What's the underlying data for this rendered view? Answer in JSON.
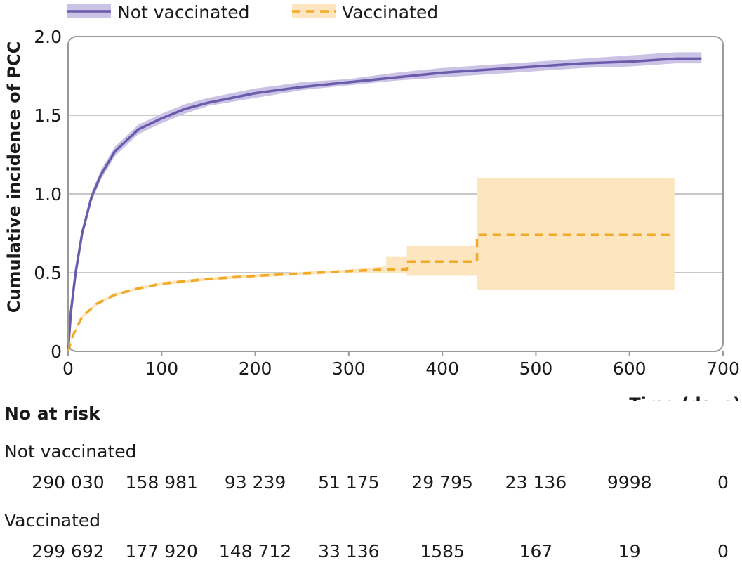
{
  "chart_data": {
    "type": "line",
    "title": "",
    "xlabel": "Time (days)",
    "ylabel": "Cumulative incidence of PCC",
    "xlim": [
      0,
      700
    ],
    "ylim": [
      0,
      2.0
    ],
    "x_ticks": [
      "0",
      "100",
      "200",
      "300",
      "400",
      "500",
      "600",
      "700"
    ],
    "y_ticks": [
      "0",
      "0.5",
      "1.0",
      "1.5",
      "2.0"
    ],
    "grid": "horizontal",
    "legend_position": "top",
    "series": [
      {
        "name": "Not vaccinated",
        "color": "#6a5bab",
        "band_color": "#cbc3e6",
        "style": "solid",
        "x": [
          0,
          3,
          8,
          15,
          25,
          35,
          50,
          75,
          100,
          125,
          150,
          200,
          250,
          300,
          350,
          400,
          450,
          500,
          550,
          600,
          650,
          677
        ],
        "y": [
          0,
          0.25,
          0.5,
          0.75,
          0.98,
          1.12,
          1.27,
          1.41,
          1.48,
          1.54,
          1.58,
          1.64,
          1.68,
          1.71,
          1.74,
          1.77,
          1.79,
          1.81,
          1.83,
          1.84,
          1.86,
          1.86
        ],
        "lower": [
          0,
          0.24,
          0.48,
          0.72,
          0.95,
          1.09,
          1.24,
          1.38,
          1.45,
          1.51,
          1.56,
          1.61,
          1.66,
          1.69,
          1.72,
          1.74,
          1.76,
          1.78,
          1.8,
          1.81,
          1.83,
          1.83
        ],
        "upper": [
          0,
          0.27,
          0.52,
          0.78,
          1.01,
          1.15,
          1.3,
          1.44,
          1.51,
          1.57,
          1.61,
          1.67,
          1.71,
          1.73,
          1.77,
          1.8,
          1.82,
          1.84,
          1.86,
          1.88,
          1.9,
          1.9
        ]
      },
      {
        "name": "Vaccinated",
        "color": "#f2a926",
        "band_color": "#fde5c0",
        "style": "dashed",
        "x": [
          0,
          5,
          15,
          30,
          50,
          75,
          100,
          150,
          200,
          250,
          300,
          340,
          362,
          362,
          437,
          437,
          648
        ],
        "y": [
          0,
          0.1,
          0.22,
          0.3,
          0.36,
          0.4,
          0.43,
          0.46,
          0.48,
          0.495,
          0.51,
          0.52,
          0.52,
          0.57,
          0.57,
          0.74,
          0.74
        ],
        "band": [
          {
            "x": [
              0,
              5,
              15,
              30,
              50,
              75,
              100,
              150,
              200,
              250,
              300,
              340
            ],
            "lower": [
              0,
              0.09,
              0.21,
              0.29,
              0.35,
              0.39,
              0.42,
              0.45,
              0.47,
              0.485,
              0.5,
              0.5
            ],
            "upper": [
              0,
              0.11,
              0.23,
              0.31,
              0.37,
              0.41,
              0.44,
              0.47,
              0.49,
              0.505,
              0.52,
              0.54
            ]
          },
          {
            "x": [
              340,
              362
            ],
            "lower": [
              0.5,
              0.5
            ],
            "upper": [
              0.6,
              0.6
            ]
          },
          {
            "x": [
              362,
              437
            ],
            "lower": [
              0.48,
              0.48
            ],
            "upper": [
              0.67,
              0.67
            ]
          },
          {
            "x": [
              437,
              648
            ],
            "lower": [
              0.39,
              0.39
            ],
            "upper": [
              1.1,
              1.1
            ]
          }
        ]
      }
    ]
  },
  "risk_table": {
    "title": "No at risk",
    "rows": [
      {
        "label": "Not vaccinated",
        "values": [
          "290 030",
          "158 981",
          "93 239",
          "51 175",
          "29 795",
          "23 136",
          "9998",
          "0"
        ]
      },
      {
        "label": "Vaccinated",
        "values": [
          "299 692",
          "177 920",
          "148 712",
          "33 136",
          "1585",
          "167",
          "19",
          "0"
        ]
      }
    ]
  }
}
